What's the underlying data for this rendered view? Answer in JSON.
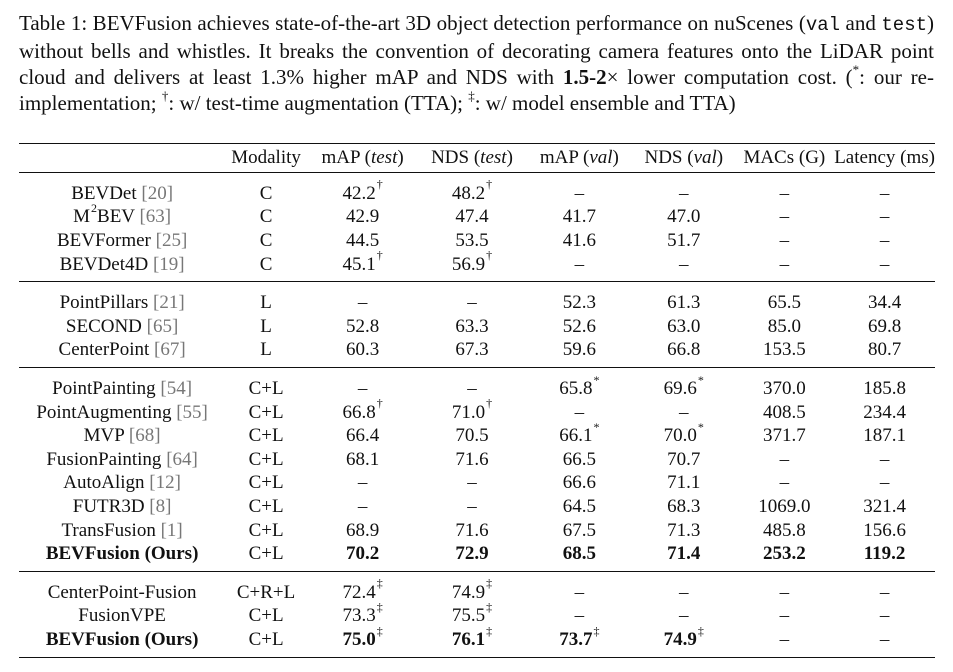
{
  "caption": {
    "part1": "Table 1: BEVFusion achieves state-of-the-art 3D object detection performance on nuScenes (",
    "mono1": "val",
    "part2": " and ",
    "mono2": "test",
    "part3": ") without bells and whistles. It breaks the convention of decorating camera features onto the LiDAR point cloud and delivers at least 1.3% higher mAP and NDS with ",
    "bold1": "1.5-2",
    "times": "×",
    "part4": " lower computation cost. (",
    "star": "*",
    "part5": ": our re-implementation; ",
    "dagger": "†",
    "part6": ": w/ test-time augmentation (TTA); ",
    "ddagger": "‡",
    "part7": ": w/ model ensemble and TTA)"
  },
  "header": {
    "col0": "",
    "modality": "Modality",
    "map_test_a": "mAP (",
    "map_test_b": "test",
    "map_test_c": ")",
    "nds_test_a": "NDS (",
    "nds_test_b": "test",
    "nds_test_c": ")",
    "map_val_a": "mAP (",
    "map_val_b": "val",
    "map_val_c": ")",
    "nds_val_a": "NDS (",
    "nds_val_b": "val",
    "nds_val_c": ")",
    "macs": "MACs (G)",
    "latency": "Latency (ms)"
  },
  "groups": [
    [
      {
        "name": "BEVDet ",
        "cite": "[20]",
        "mod": "C",
        "v": [
          [
            "42.2",
            "†"
          ],
          [
            "48.2",
            "†"
          ],
          [
            "–",
            ""
          ],
          [
            "–",
            ""
          ],
          [
            "–",
            ""
          ],
          [
            "–",
            ""
          ]
        ]
      },
      {
        "name": "M",
        "sup_name": "2",
        "name2": "BEV ",
        "cite": "[63]",
        "mod": "C",
        "v": [
          [
            "42.9",
            ""
          ],
          [
            "47.4",
            ""
          ],
          [
            "41.7",
            ""
          ],
          [
            "47.0",
            ""
          ],
          [
            "–",
            ""
          ],
          [
            "–",
            ""
          ]
        ]
      },
      {
        "name": "BEVFormer ",
        "cite": "[25]",
        "mod": "C",
        "v": [
          [
            "44.5",
            ""
          ],
          [
            "53.5",
            ""
          ],
          [
            "41.6",
            ""
          ],
          [
            "51.7",
            ""
          ],
          [
            "–",
            ""
          ],
          [
            "–",
            ""
          ]
        ]
      },
      {
        "name": "BEVDet4D ",
        "cite": "[19]",
        "mod": "C",
        "v": [
          [
            "45.1",
            "†"
          ],
          [
            "56.9",
            "†"
          ],
          [
            "–",
            ""
          ],
          [
            "–",
            ""
          ],
          [
            "–",
            ""
          ],
          [
            "–",
            ""
          ]
        ]
      }
    ],
    [
      {
        "name": "PointPillars ",
        "cite": "[21]",
        "mod": "L",
        "v": [
          [
            "–",
            ""
          ],
          [
            "–",
            ""
          ],
          [
            "52.3",
            ""
          ],
          [
            "61.3",
            ""
          ],
          [
            "65.5",
            ""
          ],
          [
            "34.4",
            ""
          ]
        ]
      },
      {
        "name": "SECOND ",
        "cite": "[65]",
        "mod": "L",
        "v": [
          [
            "52.8",
            ""
          ],
          [
            "63.3",
            ""
          ],
          [
            "52.6",
            ""
          ],
          [
            "63.0",
            ""
          ],
          [
            "85.0",
            ""
          ],
          [
            "69.8",
            ""
          ]
        ]
      },
      {
        "name": "CenterPoint ",
        "cite": "[67]",
        "mod": "L",
        "v": [
          [
            "60.3",
            ""
          ],
          [
            "67.3",
            ""
          ],
          [
            "59.6",
            ""
          ],
          [
            "66.8",
            ""
          ],
          [
            "153.5",
            ""
          ],
          [
            "80.7",
            ""
          ]
        ]
      }
    ],
    [
      {
        "name": "PointPainting ",
        "cite": "[54]",
        "mod": "C+L",
        "v": [
          [
            "–",
            ""
          ],
          [
            "–",
            ""
          ],
          [
            "65.8",
            "*"
          ],
          [
            "69.6",
            "*"
          ],
          [
            "370.0",
            ""
          ],
          [
            "185.8",
            ""
          ]
        ]
      },
      {
        "name": "PointAugmenting ",
        "cite": "[55]",
        "mod": "C+L",
        "v": [
          [
            "66.8",
            "†"
          ],
          [
            "71.0",
            "†"
          ],
          [
            "–",
            ""
          ],
          [
            "–",
            ""
          ],
          [
            "408.5",
            ""
          ],
          [
            "234.4",
            ""
          ]
        ]
      },
      {
        "name": "MVP ",
        "cite": "[68]",
        "mod": "C+L",
        "v": [
          [
            "66.4",
            ""
          ],
          [
            "70.5",
            ""
          ],
          [
            "66.1",
            "*"
          ],
          [
            "70.0",
            "*"
          ],
          [
            "371.7",
            ""
          ],
          [
            "187.1",
            ""
          ]
        ]
      },
      {
        "name": "FusionPainting ",
        "cite": "[64]",
        "mod": "C+L",
        "v": [
          [
            "68.1",
            ""
          ],
          [
            "71.6",
            ""
          ],
          [
            "66.5",
            ""
          ],
          [
            "70.7",
            ""
          ],
          [
            "–",
            ""
          ],
          [
            "–",
            ""
          ]
        ]
      },
      {
        "name": "AutoAlign ",
        "cite": "[12]",
        "mod": "C+L",
        "v": [
          [
            "–",
            ""
          ],
          [
            "–",
            ""
          ],
          [
            "66.6",
            ""
          ],
          [
            "71.1",
            ""
          ],
          [
            "–",
            ""
          ],
          [
            "–",
            ""
          ]
        ]
      },
      {
        "name": "FUTR3D ",
        "cite": "[8]",
        "mod": "C+L",
        "v": [
          [
            "–",
            ""
          ],
          [
            "–",
            ""
          ],
          [
            "64.5",
            ""
          ],
          [
            "68.3",
            ""
          ],
          [
            "1069.0",
            ""
          ],
          [
            "321.4",
            ""
          ]
        ]
      },
      {
        "name": "TransFusion ",
        "cite": "[1]",
        "mod": "C+L",
        "v": [
          [
            "68.9",
            ""
          ],
          [
            "71.6",
            ""
          ],
          [
            "67.5",
            ""
          ],
          [
            "71.3",
            ""
          ],
          [
            "485.8",
            ""
          ],
          [
            "156.6",
            ""
          ]
        ]
      },
      {
        "name": "BEVFusion",
        "name2": " (Ours)",
        "bold": true,
        "mod": "C+L",
        "v": [
          [
            "70.2",
            ""
          ],
          [
            "72.9",
            ""
          ],
          [
            "68.5",
            ""
          ],
          [
            "71.4",
            ""
          ],
          [
            "253.2",
            ""
          ],
          [
            "119.2",
            ""
          ]
        ]
      }
    ],
    [
      {
        "name": "CenterPoint-Fusion",
        "mod": "C+R+L",
        "v": [
          [
            "72.4",
            "‡"
          ],
          [
            "74.9",
            "‡"
          ],
          [
            "–",
            ""
          ],
          [
            "–",
            ""
          ],
          [
            "–",
            ""
          ],
          [
            "–",
            ""
          ]
        ]
      },
      {
        "name": "FusionVPE",
        "mod": "C+L",
        "v": [
          [
            "73.3",
            "‡"
          ],
          [
            "75.5",
            "‡"
          ],
          [
            "–",
            ""
          ],
          [
            "–",
            ""
          ],
          [
            "–",
            ""
          ],
          [
            "–",
            ""
          ]
        ]
      },
      {
        "name": "BEVFusion",
        "name2": " (Ours)",
        "bold": true,
        "mod": "C+L",
        "v": [
          [
            "75.0",
            "‡"
          ],
          [
            "76.1",
            "‡"
          ],
          [
            "73.7",
            "‡"
          ],
          [
            "74.9",
            "‡"
          ],
          [
            "–",
            ""
          ],
          [
            "–",
            ""
          ]
        ]
      }
    ]
  ]
}
